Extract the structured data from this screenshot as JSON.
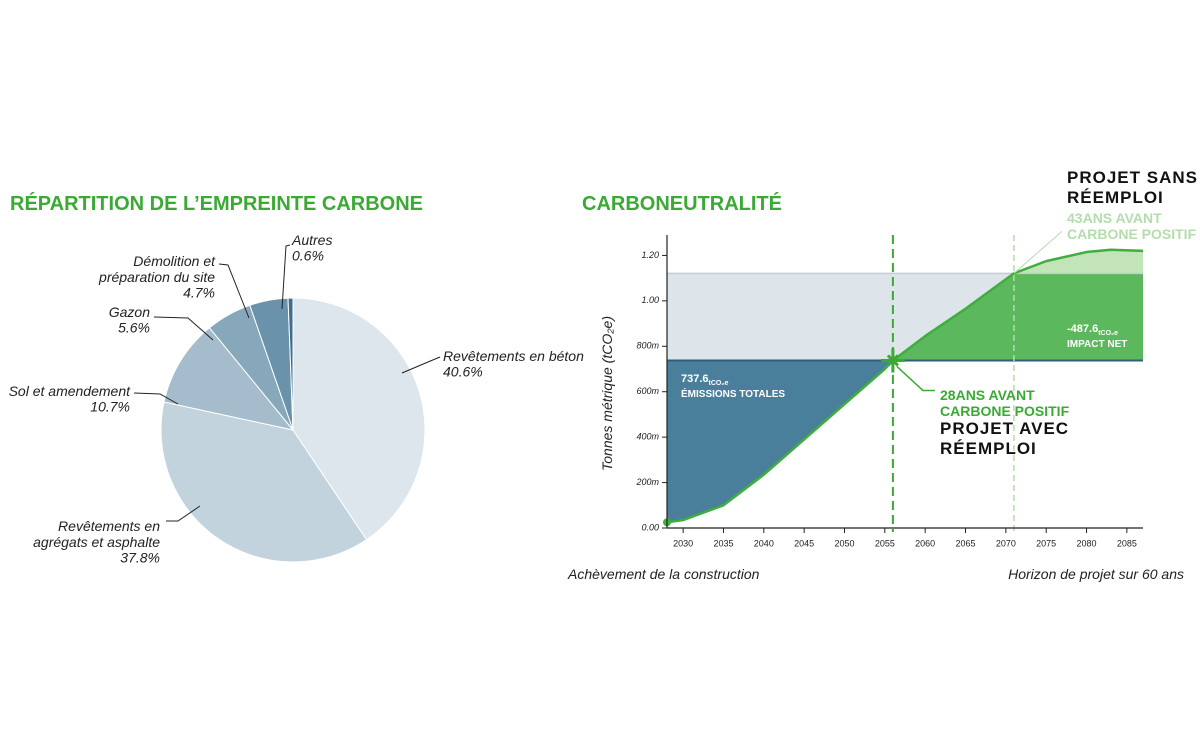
{
  "chart_data": [
    {
      "type": "pie",
      "title": "RÉPARTITION DE L’EMPREINTE CARBONE",
      "title_color": "#3aaa35",
      "categories": [
        "Revêtements en béton",
        "Revêtements en agrégats et asphalte",
        "Sol et amendement",
        "Gazon",
        "Démolition et préparation du site",
        "Autres"
      ],
      "values": [
        40.6,
        37.8,
        10.7,
        5.6,
        4.7,
        0.6
      ],
      "value_labels": [
        "40.6%",
        "37.8%",
        "10.7%",
        "5.6%",
        "4.7%",
        "0.6%"
      ],
      "colors": [
        "#dde6ec",
        "#c3d3dd",
        "#a4bccb",
        "#87a8bb",
        "#6a93ab",
        "#3e6e8c"
      ]
    },
    {
      "type": "line",
      "title": "CARBONEUTRALITÉ",
      "title_color": "#3aaa35",
      "y_label": "Tonnes métrique (tCO₂e)",
      "x_label_start": "Achèvement de la construction",
      "x_label_end": "Horizon de projet sur 60 ans",
      "xlim": [
        2028,
        2087
      ],
      "ylim": [
        0,
        1290
      ],
      "xticks": [
        2030,
        2035,
        2040,
        2045,
        2050,
        2055,
        2060,
        2065,
        2070,
        2075,
        2080,
        2085
      ],
      "yticks": [
        {
          "value": 0,
          "label": "0.00"
        },
        {
          "value": 200,
          "label": "200m"
        },
        {
          "value": 400,
          "label": "400m"
        },
        {
          "value": 600,
          "label": "600m"
        },
        {
          "value": 800,
          "label": "800m"
        },
        {
          "value": 1000,
          "label": "1.00"
        },
        {
          "value": 1200,
          "label": "1.20"
        }
      ],
      "x": [
        2028,
        2030,
        2035,
        2040,
        2045,
        2050,
        2055,
        2056,
        2060,
        2065,
        2070,
        2071,
        2075,
        2080,
        2083,
        2087
      ],
      "series": [
        {
          "color": "#3fae3f",
          "values": [
            25,
            35,
            100,
            235,
            390,
            545,
            700,
            737.6,
            845,
            965,
            1095,
            1121,
            1175,
            1215,
            1225,
            1220
          ]
        }
      ],
      "reference_lines": [
        {
          "label": "PROJET AVEC RÉEMPLOI",
          "value": 737.6,
          "color": "#2f5f7a"
        },
        {
          "label": "PROJET SANS RÉEMPLOI",
          "value": 1121,
          "color": "#c5cdd5"
        }
      ],
      "crossovers": [
        {
          "x": 2056,
          "years": 28,
          "text": "ANS AVANT CARBONE POSITIF",
          "color": "#3aaa35"
        },
        {
          "x": 2071,
          "years": 43,
          "text": "ANS AVANT CARBONE POSITIF",
          "color": "#b3ddab"
        }
      ],
      "annotations": [
        {
          "value": 737.6,
          "unit": "tCO₂e",
          "text": "ÉMISSIONS TOTALES"
        },
        {
          "value": -487.6,
          "unit": "tCO₂e",
          "text": "IMPACT NET"
        }
      ],
      "fill_colors": {
        "emissions": "#4a7f9b",
        "gap": "#dde4ea",
        "net": "#5cb85c",
        "extra": "#c2e4b8"
      }
    }
  ]
}
